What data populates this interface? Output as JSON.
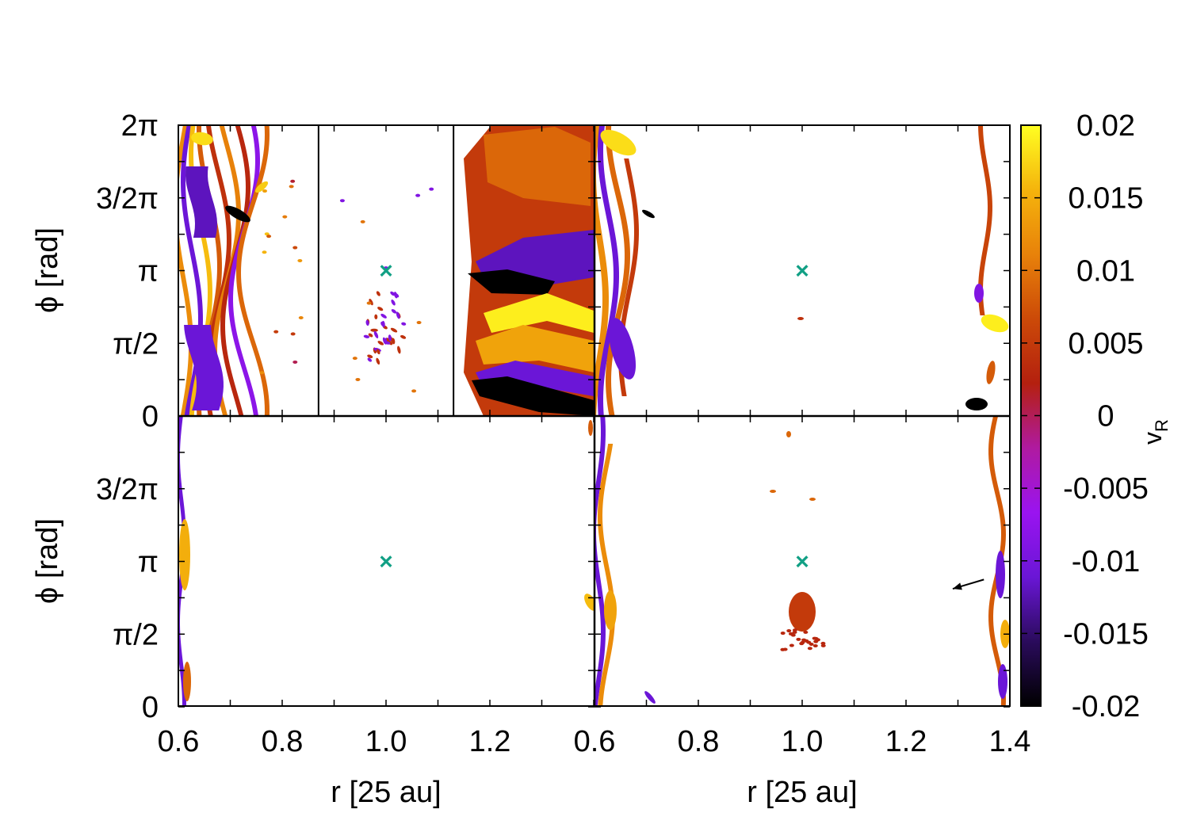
{
  "chart_data": {
    "type": "heatmap",
    "description_panels": 4,
    "xlabel": "r [25 au]",
    "ylabel": "ϕ [rad]",
    "x_ticks": [
      "0.6",
      "0.8",
      "1.0",
      "1.2",
      "1.4"
    ],
    "x_range": [
      0.6,
      1.4
    ],
    "y_ticks": [
      "0",
      "π/2",
      "π",
      "3/2π",
      "2π"
    ],
    "y_range": [
      0,
      6.2832
    ],
    "colorbar": {
      "label": "v_R",
      "label_main": "v",
      "label_sub": "R",
      "range": [
        -0.02,
        0.02
      ],
      "ticks": [
        "0.02",
        "0.015",
        "0.01",
        "0.005",
        "0",
        "-0.005",
        "-0.01",
        "-0.015",
        "-0.02"
      ],
      "colors": [
        "#000000",
        "#2a0b5c",
        "#6a16d6",
        "#9a14f0",
        "#b01aa0",
        "#b4200f",
        "#cc4a08",
        "#e8820a",
        "#f5b40c",
        "#ffff22"
      ]
    },
    "marker": {
      "symbol": "×",
      "r": 1.0,
      "phi": 3.1416,
      "color": "#12a085"
    },
    "panels": [
      {
        "position": "top-left",
        "sections": [
          {
            "r_range": [
              0.6,
              0.87
            ],
            "content": "spiral density waves"
          },
          {
            "r_range": [
              0.87,
              1.13
            ],
            "content": "gap with sparse clumps"
          },
          {
            "r_range": [
              1.13,
              1.4
            ],
            "content": "outer disc, broad spiral arms"
          }
        ]
      },
      {
        "position": "top-right",
        "content": "inner rim waves and outer edge, empty gap"
      },
      {
        "position": "bottom-left",
        "content": "thin inner rim, empty gap"
      },
      {
        "position": "bottom-right",
        "content": "inner rim, outer edge and compact clump below planet"
      }
    ],
    "annotation": {
      "type": "arrow",
      "r_start": 1.35,
      "r_end": 1.29,
      "phi_start": 2.75,
      "phi_end": 2.55,
      "color": "#000000"
    }
  }
}
